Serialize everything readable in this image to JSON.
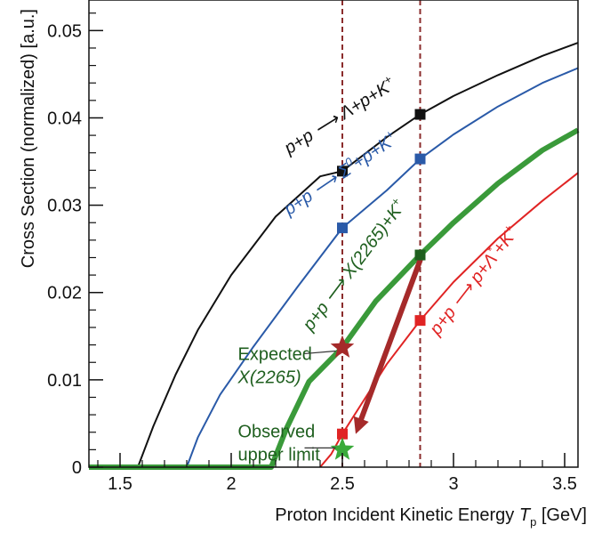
{
  "chart_data": {
    "type": "line",
    "xlabel": "Proton Incident Kinetic Energy",
    "xlabel_symbol": "T",
    "xlabel_sub": "p",
    "xlabel_unit": "[GeV]",
    "ylabel": "Cross Section (normalized) [a.u.]",
    "xlim": [
      1.36,
      3.56
    ],
    "ylim": [
      0,
      0.0535
    ],
    "x_ticks": [
      1.5,
      2,
      2.5,
      3,
      3.5
    ],
    "x_tick_labels": [
      "1.5",
      "2",
      "2.5",
      "3",
      "3.5"
    ],
    "y_ticks": [
      0,
      0.01,
      0.02,
      0.03,
      0.04,
      0.05
    ],
    "y_tick_labels": [
      "0",
      "0.01",
      "0.02",
      "0.03",
      "0.04",
      "0.05"
    ],
    "grid": false,
    "vertical_lines": [
      2.5,
      2.85
    ],
    "series": [
      {
        "label": "p+p ⟶ Λ+p+K⁺",
        "color": "#111111",
        "width": 2,
        "x": [
          1.36,
          1.58,
          1.65,
          1.75,
          1.85,
          2.0,
          2.2,
          2.4,
          2.5,
          2.7,
          2.85,
          3.0,
          3.2,
          3.4,
          3.56
        ],
        "y": [
          0,
          0,
          0.0047,
          0.0106,
          0.0157,
          0.022,
          0.0287,
          0.0333,
          0.0339,
          0.0378,
          0.0404,
          0.0425,
          0.0449,
          0.0471,
          0.0486
        ]
      },
      {
        "label": "p+p ⟶ Σ⁰+p+K⁺",
        "color": "#2a5aa8",
        "width": 2,
        "x": [
          1.36,
          1.8,
          1.85,
          1.95,
          2.1,
          2.3,
          2.5,
          2.7,
          2.85,
          3.0,
          3.2,
          3.4,
          3.56
        ],
        "y": [
          0,
          0,
          0.0034,
          0.0083,
          0.0138,
          0.0207,
          0.0274,
          0.0317,
          0.0353,
          0.0381,
          0.0413,
          0.044,
          0.0457
        ]
      },
      {
        "label": "p+p ⟶ X(2265)+K⁺",
        "color": "#3a9a3a",
        "width": 6,
        "x": [
          1.36,
          2.18,
          2.25,
          2.35,
          2.5,
          2.65,
          2.85,
          3.0,
          3.2,
          3.4,
          3.56
        ],
        "y": [
          0,
          0,
          0.0045,
          0.0098,
          0.0137,
          0.019,
          0.0243,
          0.028,
          0.0325,
          0.0363,
          0.0386
        ]
      },
      {
        "label": "p+p ⟶ p+Λ*+K⁺",
        "color": "#e02424",
        "width": 2,
        "x": [
          2.4,
          2.45,
          2.5,
          2.6,
          2.7,
          2.85,
          3.0,
          3.2,
          3.4,
          3.56
        ],
        "y": [
          0,
          0.0015,
          0.0038,
          0.0078,
          0.0118,
          0.0168,
          0.0212,
          0.0262,
          0.0305,
          0.0337
        ]
      }
    ],
    "markers": [
      {
        "x": 2.5,
        "y": 0.0339,
        "color": "#111111"
      },
      {
        "x": 2.85,
        "y": 0.0404,
        "color": "#111111"
      },
      {
        "x": 2.5,
        "y": 0.0274,
        "color": "#2a5aa8"
      },
      {
        "x": 2.85,
        "y": 0.0353,
        "color": "#2a5aa8"
      },
      {
        "x": 2.85,
        "y": 0.0243,
        "color": "#1f5f1f"
      },
      {
        "x": 2.5,
        "y": 0.0038,
        "color": "#e02424"
      },
      {
        "x": 2.85,
        "y": 0.0168,
        "color": "#e02424"
      }
    ],
    "stars": [
      {
        "x": 2.5,
        "y": 0.0137,
        "color": "#a52a2a",
        "name": "expected-star"
      },
      {
        "x": 2.5,
        "y": 0.002,
        "color": "#3aaa3a",
        "name": "observed-star"
      }
    ],
    "arrow": {
      "from_x": 2.85,
      "from_y": 0.0237,
      "to_x": 2.56,
      "to_y": 0.0038,
      "color": "#a52a2a"
    },
    "curve_labels": [
      {
        "series": 0,
        "text_before": "p+p",
        "arrow": "⟶",
        "text_after": "Λ+p+K",
        "sup": "+",
        "x": 2.26,
        "y": 0.0358,
        "angle": -32,
        "color": "#111111"
      },
      {
        "series": 1,
        "text_before": "p+p",
        "arrow": "⟶",
        "text_after": "Σ",
        "sup0": "0",
        "text_after2": "+p+K",
        "sup": "+",
        "x": 2.26,
        "y": 0.0288,
        "angle": -34,
        "color": "#2a5aa8"
      },
      {
        "series": 2,
        "text_before": "p+p",
        "arrow": "⟶",
        "text_after": "X(2265)+K",
        "sup": "+",
        "x": 2.36,
        "y": 0.0155,
        "angle": -53,
        "color": "#1f5f1f"
      },
      {
        "series": 3,
        "text_before": "p+p",
        "arrow": "⟶",
        "text_after": "p+Λ",
        "sup0": "*",
        "text_after2": "+K",
        "sup": "+",
        "x": 2.93,
        "y": 0.015,
        "angle": -52,
        "color": "#e02424"
      }
    ],
    "annotations": [
      {
        "lines": [
          "Expected",
          "X(2265)"
        ],
        "italic_line": 1,
        "color": "#1f5f1f",
        "x": 2.03,
        "y": 0.0123,
        "leader_to_x": 2.47,
        "leader_to_y": 0.0133,
        "leader_from_x": 2.33,
        "leader_from_y": 0.013
      },
      {
        "lines": [
          "Observed",
          "upper limit"
        ],
        "italic_line": -1,
        "color": "#1f5f1f",
        "x": 2.03,
        "y": 0.0034,
        "leader_to_x": 2.47,
        "leader_to_y": 0.0022,
        "leader_from_x": 2.33,
        "leader_from_y": 0.0022
      }
    ]
  }
}
